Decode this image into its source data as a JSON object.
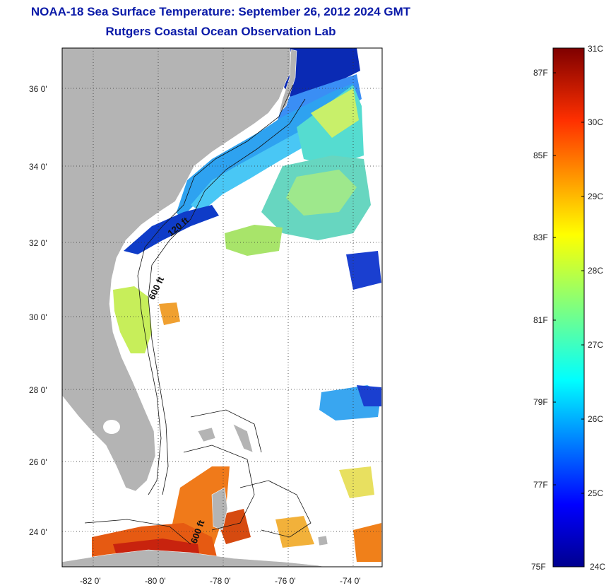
{
  "header": {
    "title": "NOAA-18 Sea Surface Temperature:  September 26, 2012 2024 GMT",
    "subtitle": "Rutgers Coastal Ocean Observation Lab"
  },
  "map": {
    "lon_ticks": [
      "-82 0'",
      "-80 0'",
      "-78 0'",
      "-76 0'",
      "-74 0'"
    ],
    "lat_ticks": [
      "36 0'",
      "34 0'",
      "32 0'",
      "30 0'",
      "28 0'",
      "26 0'",
      "24 0'"
    ],
    "contour_labels": [
      "120 ft",
      "600 ft",
      "600 ft"
    ],
    "colors": {
      "land": "#b4b4b4",
      "ocean_nodata": "#ffffff",
      "frame": "#000000"
    }
  },
  "colorbar": {
    "celsius": [
      "31C",
      "30C",
      "29C",
      "28C",
      "27C",
      "26C",
      "25C",
      "24C"
    ],
    "fahrenheit": [
      "87F",
      "85F",
      "83F",
      "81F",
      "79F",
      "77F",
      "75F"
    ],
    "range_c": [
      24,
      31
    ],
    "colormap": [
      "#00008f",
      "#0000ff",
      "#007fff",
      "#00ffff",
      "#7fff7f",
      "#ffff00",
      "#ff7f00",
      "#ff0000",
      "#7f0000"
    ]
  }
}
